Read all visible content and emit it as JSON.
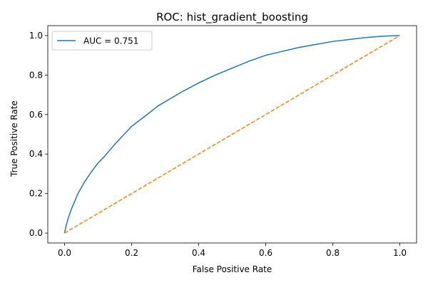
{
  "chart_data": {
    "type": "line",
    "title": "ROC: hist_gradient_boosting",
    "xlabel": "False Positive Rate",
    "ylabel": "True Positive Rate",
    "xlim": [
      -0.05,
      1.05
    ],
    "ylim": [
      -0.05,
      1.05
    ],
    "xticks": [
      "0.0",
      "0.2",
      "0.4",
      "0.6",
      "0.8",
      "1.0"
    ],
    "yticks": [
      "0.0",
      "0.2",
      "0.4",
      "0.6",
      "0.8",
      "1.0"
    ],
    "grid": false,
    "legend_position": "top-left",
    "series": [
      {
        "name": "AUC = 0.751",
        "color": "#1f77b4",
        "style": "solid",
        "x": [
          0.0,
          0.005,
          0.01,
          0.02,
          0.03,
          0.04,
          0.05,
          0.06,
          0.08,
          0.1,
          0.12,
          0.15,
          0.2,
          0.25,
          0.28,
          0.3,
          0.35,
          0.4,
          0.45,
          0.5,
          0.55,
          0.6,
          0.65,
          0.7,
          0.75,
          0.8,
          0.85,
          0.9,
          0.95,
          1.0
        ],
        "y": [
          0.0,
          0.04,
          0.07,
          0.12,
          0.16,
          0.2,
          0.23,
          0.26,
          0.31,
          0.355,
          0.39,
          0.45,
          0.54,
          0.605,
          0.645,
          0.665,
          0.715,
          0.76,
          0.8,
          0.835,
          0.87,
          0.9,
          0.92,
          0.94,
          0.955,
          0.97,
          0.98,
          0.99,
          0.997,
          1.0
        ]
      },
      {
        "name": "",
        "color": "#ff7f0e",
        "style": "dashed",
        "x": [
          0.0,
          1.0
        ],
        "y": [
          0.0,
          1.0
        ]
      }
    ]
  }
}
